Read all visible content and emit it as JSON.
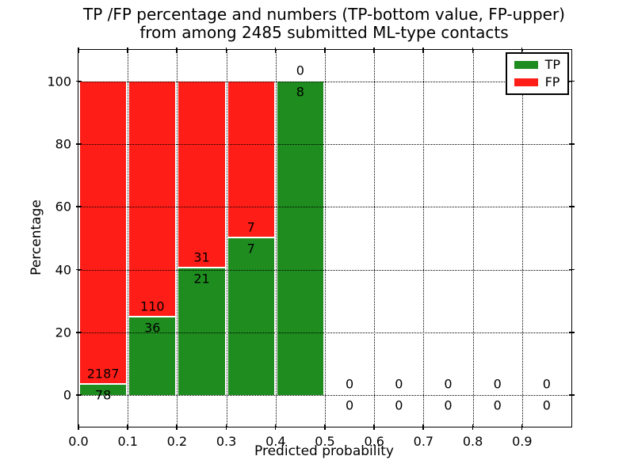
{
  "figure": {
    "title_line1": "TP /FP percentage and numbers (TP-bottom value, FP-upper)",
    "title_line2": "from among 2485 submitted ML-type contacts"
  },
  "chart_data": {
    "type": "bar",
    "stacked": true,
    "title": "TP /FP percentage and numbers (TP-bottom value, FP-upper) from among 2485 submitted ML-type contacts",
    "xlabel": "Predicted probability",
    "ylabel": "Percentage",
    "total_submitted_contacts": 2485,
    "bin_edges": [
      0.0,
      0.1,
      0.2,
      0.3,
      0.4,
      0.5,
      0.6,
      0.7,
      0.8,
      0.9,
      1.0
    ],
    "xlim": [
      0.0,
      1.0
    ],
    "ylim": [
      -10,
      110
    ],
    "xtick_labels": [
      "0.0",
      "0.1",
      "0.2",
      "0.3",
      "0.4",
      "0.5",
      "0.6",
      "0.7",
      "0.8",
      "0.9"
    ],
    "ytick_labels": [
      "0",
      "20",
      "40",
      "60",
      "80",
      "100"
    ],
    "grid": "dotted",
    "legend_position": "upper right",
    "series": [
      {
        "name": "TP",
        "color": "#1e8c1e",
        "counts": [
          78,
          36,
          21,
          7,
          8,
          0,
          0,
          0,
          0,
          0
        ],
        "pct": [
          3.4,
          24.7,
          40.4,
          50.0,
          100.0,
          0,
          0,
          0,
          0,
          0
        ]
      },
      {
        "name": "FP",
        "color": "#ff1d17",
        "counts": [
          2187,
          110,
          31,
          7,
          0,
          0,
          0,
          0,
          0,
          0
        ],
        "pct": [
          96.6,
          75.3,
          59.6,
          50.0,
          0,
          0,
          0,
          0,
          0,
          0
        ]
      }
    ]
  }
}
